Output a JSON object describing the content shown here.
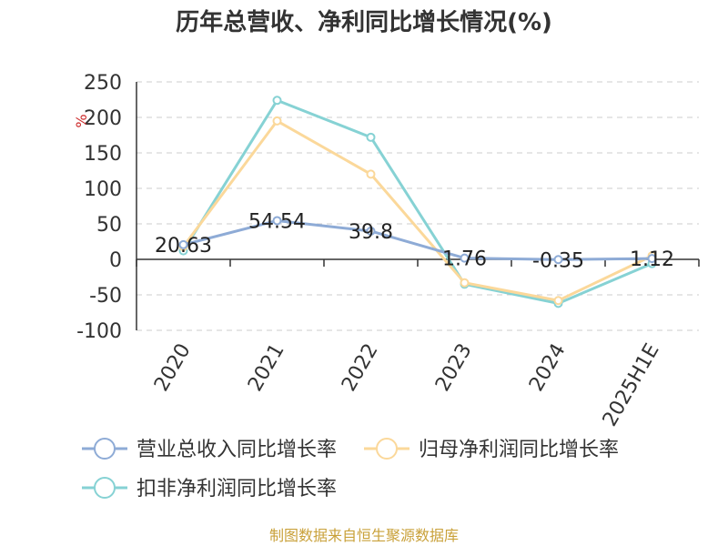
{
  "chart_data": {
    "type": "line",
    "title": "历年总营收、净利同比增长情况(%)",
    "ylabel": "%",
    "ylim": [
      -100,
      250
    ],
    "yticks": [
      "250",
      "200",
      "150",
      "100",
      "50",
      "0",
      "-50",
      "-100"
    ],
    "categories": [
      "2020",
      "2021",
      "2022",
      "2023",
      "2024",
      "2025H1E"
    ],
    "series": [
      {
        "name": "营业总收入同比增长率",
        "color": "#8eabd6",
        "values": [
          20.63,
          54.54,
          39.8,
          1.76,
          -0.35,
          1.12
        ],
        "labels": [
          "20.63",
          "54.54",
          "39.8",
          "1.76",
          "-0.35",
          "1.12"
        ]
      },
      {
        "name": "归母净利润同比增长率",
        "color": "#fbd89a",
        "values": [
          18,
          195,
          120,
          -33,
          -58,
          5
        ]
      },
      {
        "name": "扣非净利润同比增长率",
        "color": "#86d2d4",
        "values": [
          12,
          224,
          172,
          -35,
          -62,
          -6
        ]
      }
    ],
    "grid": true,
    "legend_position": "bottom"
  },
  "source": {
    "text": "制图数据来自恒生聚源数据库",
    "color": "#c9a13a"
  },
  "colors": {
    "unit": "#cc2a2a",
    "grid": "#cccccc",
    "axis": "#333333"
  }
}
